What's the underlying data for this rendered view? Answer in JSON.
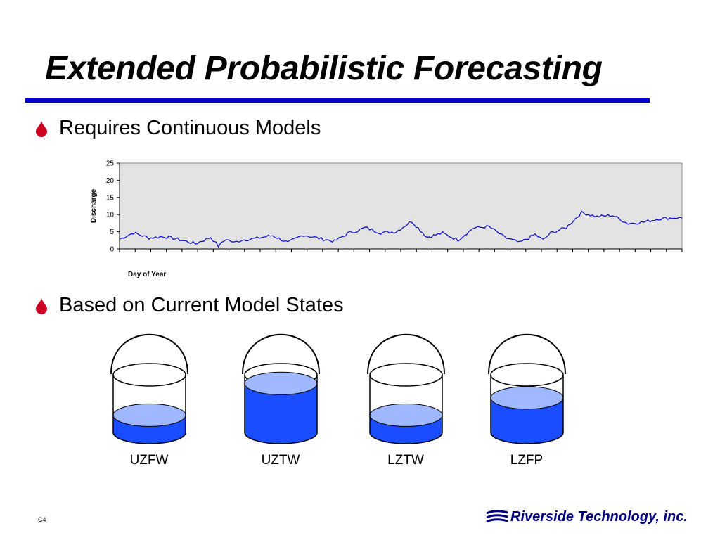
{
  "slide": {
    "title": "Extended Probabilistic Forecasting",
    "number": "C4"
  },
  "bullets": [
    {
      "icon": "drop-icon",
      "text": "Requires Continuous Models"
    },
    {
      "icon": "drop-icon",
      "text": "Based on Current Model States"
    }
  ],
  "colors": {
    "title_rule": "#0000cc",
    "bullet_drop": "#cc0022",
    "plot_background": "#e3e3e3",
    "series_line": "#0000cc",
    "water": "#1a4dff",
    "water_surface": "#9fb8ff"
  },
  "chart_data": {
    "type": "line",
    "title": "",
    "xlabel": "Day of Year",
    "ylabel": "Discharge",
    "ylim": [
      0,
      25
    ],
    "yticks": [
      0,
      5,
      10,
      15,
      20,
      25
    ],
    "x_tick_count": 36,
    "x_tick_labels_shown": false,
    "grid": false,
    "legend": "none",
    "x": [
      1,
      10,
      20,
      30,
      40,
      50,
      60,
      65,
      70,
      75,
      80,
      90,
      100,
      110,
      120,
      130,
      140,
      150,
      155,
      160,
      170,
      180,
      190,
      200,
      210,
      220,
      230,
      240,
      245,
      250,
      260,
      270,
      275,
      280,
      290,
      300,
      310,
      320,
      330,
      340,
      350,
      360,
      365
    ],
    "series": [
      {
        "values": [
          2.8,
          4.7,
          3.2,
          3.6,
          2.7,
          1.5,
          3.4,
          0.8,
          2.9,
          1.8,
          2.6,
          3.1,
          3.9,
          1.8,
          4.1,
          3.1,
          2.2,
          4.8,
          5.3,
          6.2,
          4.7,
          5.0,
          8.1,
          3.4,
          4.6,
          2.6,
          6.1,
          6.5,
          5.0,
          3.4,
          1.8,
          4.2,
          2.6,
          4.6,
          6.2,
          10.6,
          9.4,
          9.8,
          7.4,
          7.8,
          8.8,
          9.1,
          9.0
        ]
      }
    ]
  },
  "buckets": [
    {
      "label": "UZFW",
      "fill": 0.3
    },
    {
      "label": "UZTW",
      "fill": 0.85
    },
    {
      "label": "LZTW",
      "fill": 0.3
    },
    {
      "label": "LZFP",
      "fill": 0.6
    }
  ],
  "logo": {
    "icon": "riverside-logo-icon",
    "text": "Riverside Technology, inc."
  }
}
